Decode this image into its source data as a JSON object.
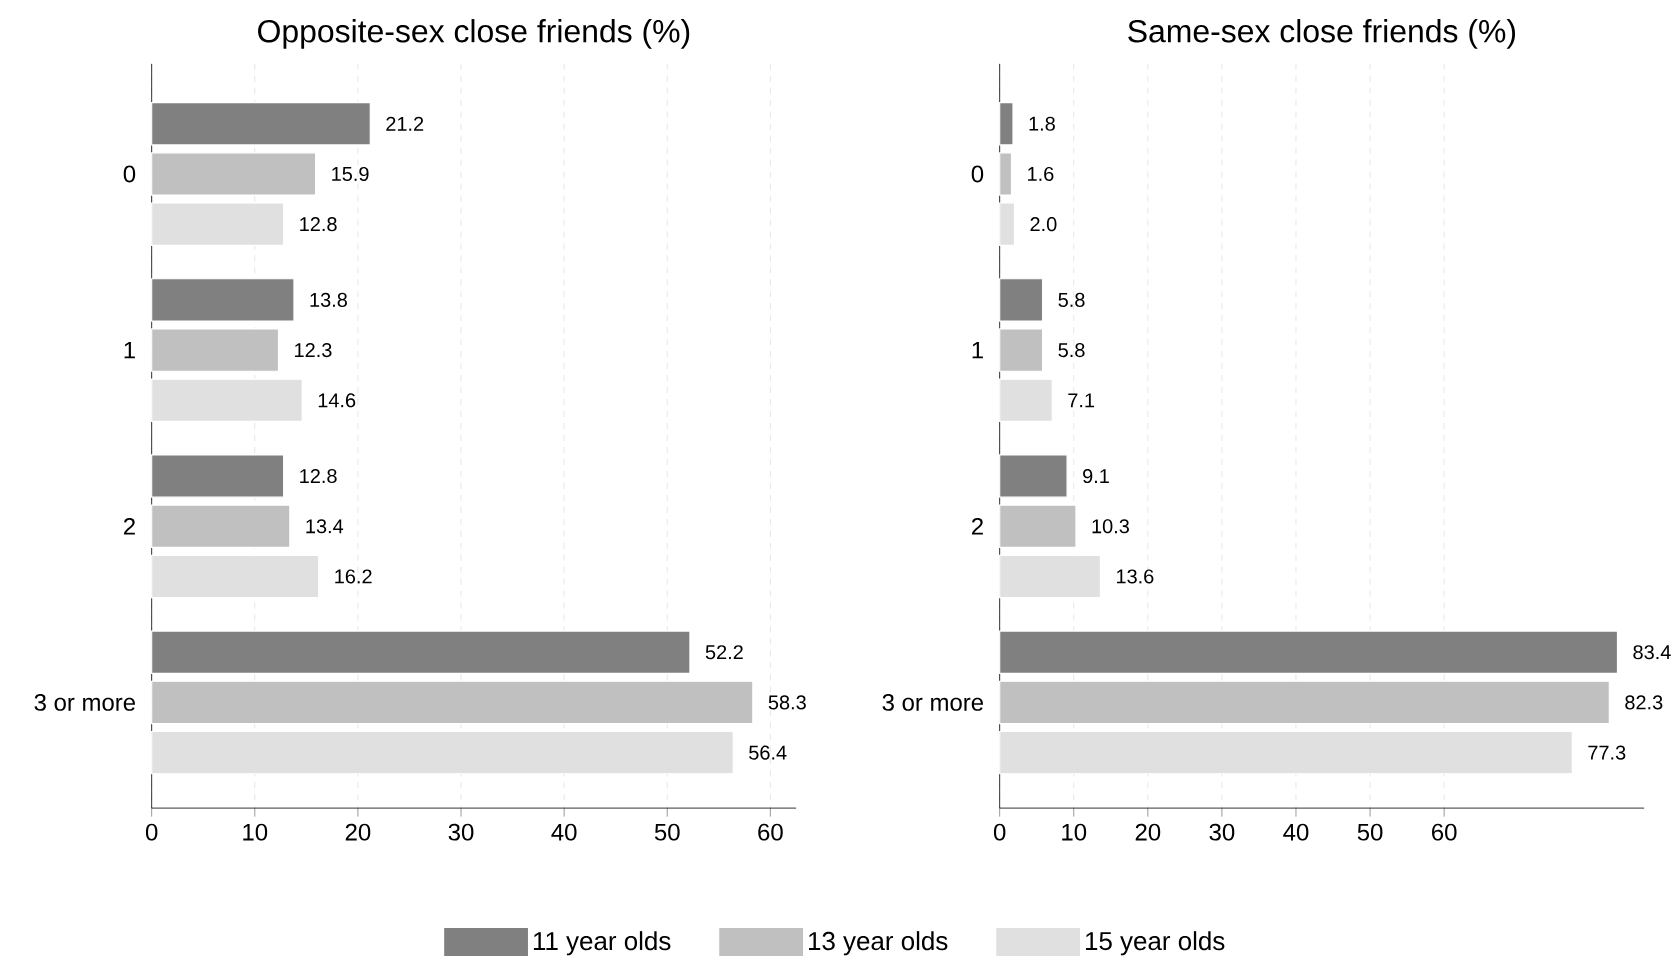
{
  "chart_data": [
    {
      "type": "bar",
      "orientation": "horizontal",
      "title": "Opposite-sex close friends (%)",
      "categories": [
        "0",
        "1",
        "2",
        "3 or more"
      ],
      "series": [
        {
          "name": "11 year olds",
          "color": "#808080",
          "values": [
            21.2,
            13.8,
            12.8,
            52.2
          ]
        },
        {
          "name": "13 year olds",
          "color": "#c0c0c0",
          "values": [
            15.9,
            12.3,
            13.4,
            58.3
          ]
        },
        {
          "name": "15 year olds",
          "color": "#e0e0e0",
          "values": [
            12.8,
            14.6,
            16.2,
            56.4
          ]
        }
      ],
      "xlim": [
        0,
        62.5
      ],
      "xticks": [
        0,
        10,
        20,
        30,
        40,
        50,
        60
      ],
      "grid": "x",
      "legend": "bottom",
      "data_labels": true
    },
    {
      "type": "bar",
      "orientation": "horizontal",
      "title": "Same-sex close friends (%)",
      "categories": [
        "0",
        "1",
        "2",
        "3 or more"
      ],
      "series": [
        {
          "color": "#808080",
          "values": [
            1.8,
            5.8,
            9.1,
            83.4
          ],
          "value_labels": [
            "1.8",
            "5.8",
            "9.1",
            "83.4"
          ]
        },
        {
          "color": "#c0c0c0",
          "values": [
            1.6,
            5.8,
            10.3,
            82.3
          ],
          "value_labels": [
            "1.6",
            "5.8",
            "10.3",
            "82.3"
          ]
        },
        {
          "color": "#e0e0e0",
          "values": [
            2.0,
            7.1,
            13.6,
            77.3
          ],
          "value_labels": [
            "2.0",
            "7.1",
            "13.6",
            "77.3"
          ]
        }
      ],
      "xlim": [
        0,
        87
      ],
      "xticks": [
        0,
        10,
        20,
        30,
        40,
        50,
        60
      ],
      "grid": "x"
    }
  ]
}
